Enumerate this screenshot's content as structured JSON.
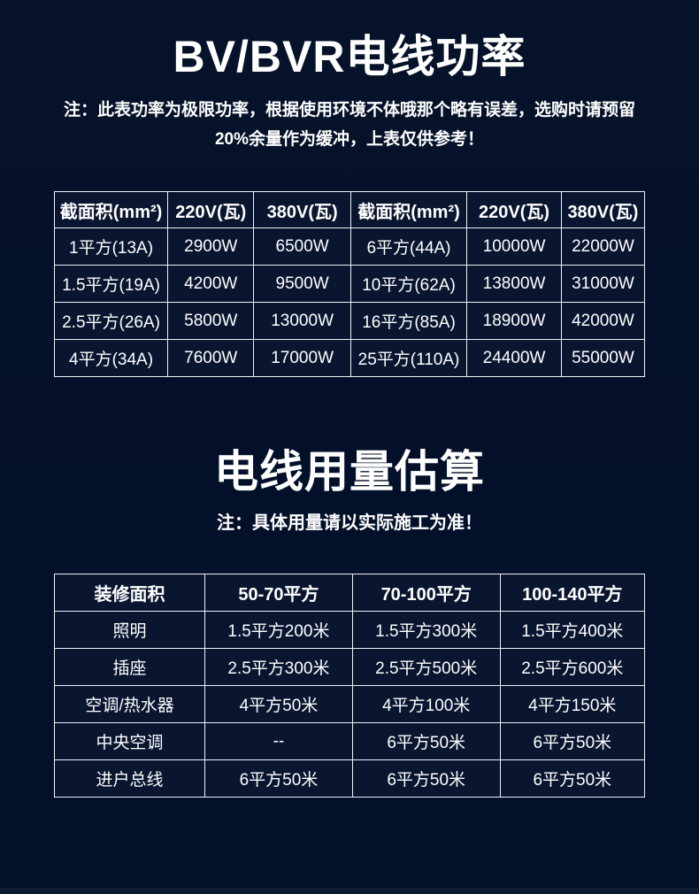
{
  "page": {
    "colors": {
      "bg": "#03102a",
      "cell_bg": "#0a1630",
      "border": "#eef2f7",
      "text": "#ffffff",
      "footer": "#0d1a31"
    }
  },
  "sections": [
    {
      "title": "BV/BVR电线功率",
      "notes": [
        "注：此表功率为极限功率，根据使用环境不体哦那个略有误差，选购时请预留",
        "20%余量作为缓冲，上表仅供参考！"
      ]
    },
    {
      "title": "电线用量估算",
      "notes": [
        "注：具体用量请以实际施工为准！"
      ]
    }
  ],
  "chart_data": [
    {
      "type": "table",
      "title": "BV/BVR电线功率",
      "columns": [
        "截面积(mm²)",
        "220V(瓦)",
        "380V(瓦)",
        "截面积(mm²)",
        "220V(瓦)",
        "380V(瓦)"
      ],
      "rows": [
        [
          "1平方(13A)",
          "2900W",
          "6500W",
          "6平方(44A)",
          "10000W",
          "22000W"
        ],
        [
          "1.5平方(19A)",
          "4200W",
          "9500W",
          "10平方(62A)",
          "13800W",
          "31000W"
        ],
        [
          "2.5平方(26A)",
          "5800W",
          "13000W",
          "16平方(85A)",
          "18900W",
          "42000W"
        ],
        [
          "4平方(34A)",
          "7600W",
          "17000W",
          "25平方(110A)",
          "24400W",
          "55000W"
        ]
      ]
    },
    {
      "type": "table",
      "title": "电线用量估算",
      "columns": [
        "装修面积",
        "50-70平方",
        "70-100平方",
        "100-140平方"
      ],
      "rows": [
        [
          "照明",
          "1.5平方200米",
          "1.5平方300米",
          "1.5平方400米"
        ],
        [
          "插座",
          "2.5平方300米",
          "2.5平方500米",
          "2.5平方600米"
        ],
        [
          "空调/热水器",
          "4平方50米",
          "4平方100米",
          "4平方150米"
        ],
        [
          "中央空调",
          "--",
          "6平方50米",
          "6平方50米"
        ],
        [
          "进户总线",
          "6平方50米",
          "6平方50米",
          "6平方50米"
        ]
      ]
    }
  ]
}
